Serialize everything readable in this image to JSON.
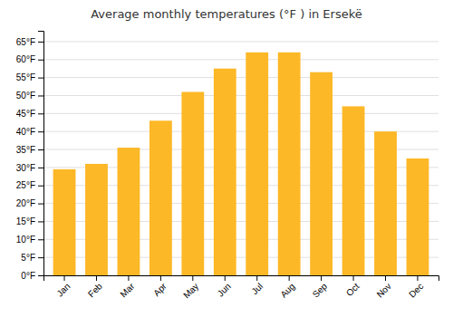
{
  "chart_data": {
    "type": "bar",
    "title": "Average monthly temperatures (°F ) in Ersekë",
    "categories": [
      "Jan",
      "Feb",
      "Mar",
      "Apr",
      "May",
      "Jun",
      "Jul",
      "Aug",
      "Sep",
      "Oct",
      "Nov",
      "Dec"
    ],
    "values": [
      29.5,
      31.0,
      35.5,
      43.0,
      51.0,
      57.5,
      62.0,
      62.0,
      56.5,
      47.0,
      40.0,
      32.5
    ],
    "color": "#FDB827",
    "ylim": [
      0,
      68
    ],
    "yticks": [
      {
        "value": 0,
        "label": "0°F"
      },
      {
        "value": 5,
        "label": "5°F"
      },
      {
        "value": 10,
        "label": "10°F"
      },
      {
        "value": 15,
        "label": "15°F"
      },
      {
        "value": 20,
        "label": "20°F"
      },
      {
        "value": 25,
        "label": "25°F"
      },
      {
        "value": 30,
        "label": "30°F"
      },
      {
        "value": 35,
        "label": "35°F"
      },
      {
        "value": 40,
        "label": "40°F"
      },
      {
        "value": 45,
        "label": "45°F"
      },
      {
        "value": 50,
        "label": "50°F"
      },
      {
        "value": 55,
        "label": "55°F"
      },
      {
        "value": 60,
        "label": "60°F"
      },
      {
        "value": 65,
        "label": "65°F"
      }
    ],
    "grid": true
  }
}
